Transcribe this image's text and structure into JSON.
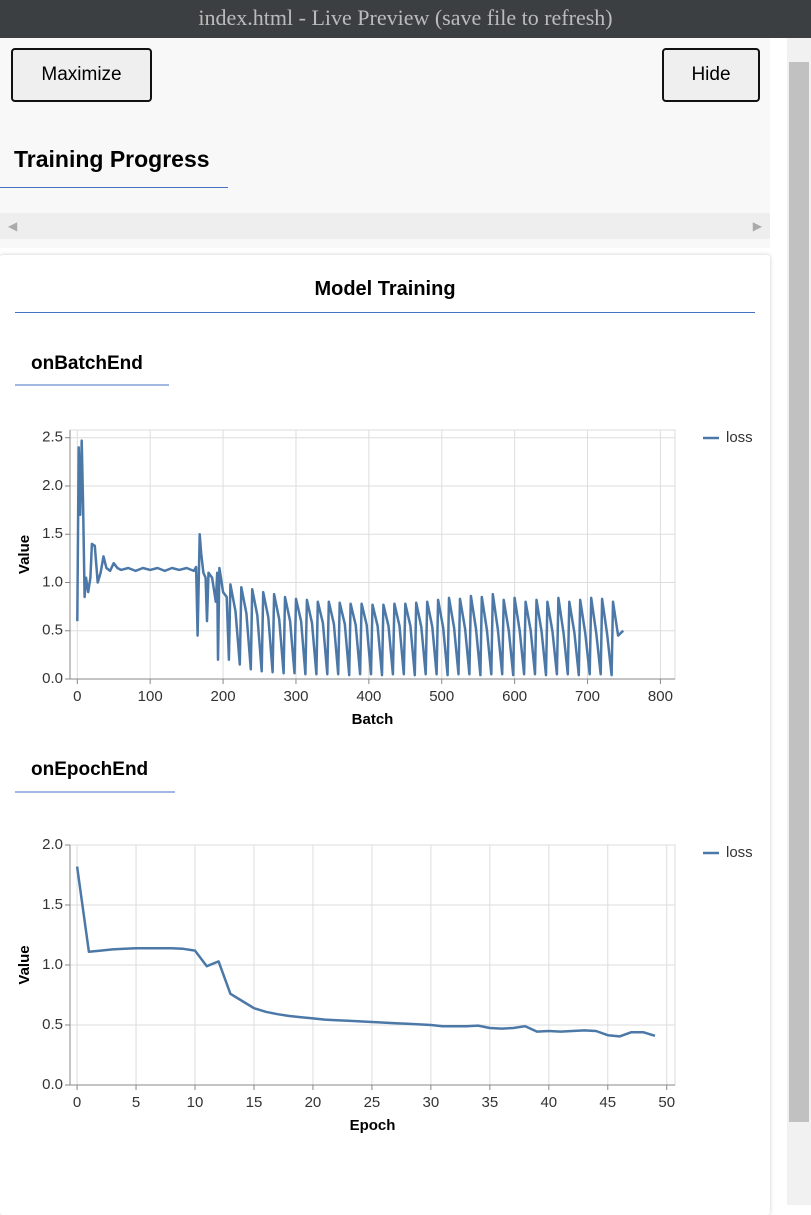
{
  "titlebar": "index.html - Live Preview (save file to refresh)",
  "buttons": [
    "Maximize",
    "Hide"
  ],
  "visor_title": "Training Progress",
  "surface_title": "Model Training",
  "chart_data": [
    {
      "type": "line",
      "title": "onBatchEnd",
      "x_label": "Batch",
      "y_label": "Value",
      "x": [
        0,
        2,
        4,
        6,
        8,
        10,
        12,
        15,
        18,
        20,
        24,
        28,
        32,
        36,
        40,
        45,
        50,
        55,
        60,
        70,
        80,
        90,
        100,
        110,
        120,
        130,
        140,
        150,
        160,
        163,
        165,
        168,
        170,
        173,
        176,
        178,
        180,
        185,
        190,
        192,
        193,
        195,
        200,
        205,
        208,
        210,
        217,
        223,
        225,
        232,
        238,
        240,
        247,
        253,
        255,
        262,
        268,
        270,
        277,
        283,
        285,
        292,
        298,
        300,
        307,
        313,
        315,
        322,
        328,
        330,
        337,
        343,
        345,
        352,
        358,
        360,
        367,
        373,
        375,
        382,
        388,
        390,
        397,
        403,
        405,
        412,
        418,
        420,
        427,
        433,
        435,
        442,
        448,
        450,
        457,
        463,
        465,
        472,
        478,
        480,
        487,
        493,
        495,
        502,
        508,
        510,
        517,
        523,
        525,
        532,
        538,
        540,
        547,
        553,
        555,
        562,
        568,
        570,
        577,
        583,
        585,
        592,
        598,
        600,
        607,
        613,
        615,
        622,
        628,
        630,
        637,
        643,
        645,
        652,
        658,
        660,
        667,
        673,
        675,
        682,
        688,
        690,
        697,
        703,
        705,
        712,
        718,
        720,
        727,
        733,
        735,
        742,
        749
      ],
      "series": [
        {
          "name": "loss",
          "color": "#4c78a8",
          "values": [
            0.6,
            2.4,
            1.7,
            2.47,
            1.8,
            0.85,
            1.05,
            0.9,
            1.05,
            1.4,
            1.38,
            1.0,
            1.1,
            1.27,
            1.15,
            1.12,
            1.2,
            1.15,
            1.13,
            1.15,
            1.12,
            1.15,
            1.13,
            1.15,
            1.12,
            1.15,
            1.13,
            1.15,
            1.12,
            1.16,
            0.45,
            1.5,
            1.3,
            1.1,
            1.05,
            0.6,
            1.1,
            1.05,
            0.8,
            1.1,
            0.2,
            1.15,
            0.9,
            0.85,
            0.2,
            0.98,
            0.7,
            0.15,
            0.95,
            0.68,
            0.1,
            0.93,
            0.66,
            0.08,
            0.9,
            0.64,
            0.07,
            0.88,
            0.62,
            0.06,
            0.85,
            0.6,
            0.06,
            0.83,
            0.6,
            0.05,
            0.82,
            0.58,
            0.05,
            0.8,
            0.58,
            0.05,
            0.8,
            0.57,
            0.05,
            0.79,
            0.57,
            0.04,
            0.78,
            0.56,
            0.05,
            0.78,
            0.56,
            0.05,
            0.77,
            0.55,
            0.04,
            0.77,
            0.55,
            0.05,
            0.78,
            0.55,
            0.05,
            0.78,
            0.55,
            0.04,
            0.79,
            0.54,
            0.05,
            0.8,
            0.54,
            0.05,
            0.82,
            0.53,
            0.04,
            0.84,
            0.53,
            0.05,
            0.83,
            0.52,
            0.05,
            0.86,
            0.52,
            0.04,
            0.85,
            0.51,
            0.05,
            0.88,
            0.51,
            0.05,
            0.82,
            0.5,
            0.04,
            0.84,
            0.5,
            0.05,
            0.8,
            0.5,
            0.05,
            0.82,
            0.49,
            0.04,
            0.8,
            0.49,
            0.05,
            0.84,
            0.48,
            0.05,
            0.8,
            0.48,
            0.04,
            0.82,
            0.47,
            0.05,
            0.84,
            0.47,
            0.05,
            0.83,
            0.46,
            0.04,
            0.8,
            0.45,
            0.5
          ]
        }
      ],
      "xlim": [
        -10,
        820
      ],
      "ylim": [
        0,
        2.58
      ],
      "xticks": [
        0,
        100,
        200,
        300,
        400,
        500,
        600,
        700,
        800
      ],
      "yticks": [
        {
          "value": 0,
          "label": "0.0"
        },
        {
          "value": 0.5,
          "label": "0.5"
        },
        {
          "value": 1,
          "label": "1.0"
        },
        {
          "value": 1.5,
          "label": "1.5"
        },
        {
          "value": 2,
          "label": "2.0"
        },
        {
          "value": 2.5,
          "label": "2.5"
        }
      ],
      "grid": true,
      "legend": "right"
    },
    {
      "type": "line",
      "title": "onEpochEnd",
      "x_label": "Epoch",
      "y_label": "Value",
      "x": [
        0,
        1,
        2,
        3,
        4,
        5,
        6,
        7,
        8,
        9,
        10,
        11,
        12,
        13,
        14,
        15,
        16,
        17,
        18,
        19,
        20,
        21,
        22,
        23,
        24,
        25,
        26,
        27,
        28,
        29,
        30,
        31,
        32,
        33,
        34,
        35,
        36,
        37,
        38,
        39,
        40,
        41,
        42,
        43,
        44,
        45,
        46,
        47,
        48,
        49
      ],
      "series": [
        {
          "name": "loss",
          "color": "#4c78a8",
          "values": [
            1.82,
            1.11,
            1.12,
            1.13,
            1.135,
            1.14,
            1.14,
            1.14,
            1.14,
            1.135,
            1.12,
            0.99,
            1.03,
            0.76,
            0.7,
            0.64,
            0.61,
            0.59,
            0.575,
            0.565,
            0.555,
            0.545,
            0.54,
            0.535,
            0.53,
            0.525,
            0.52,
            0.515,
            0.51,
            0.505,
            0.5,
            0.49,
            0.49,
            0.49,
            0.495,
            0.475,
            0.47,
            0.475,
            0.49,
            0.445,
            0.45,
            0.445,
            0.45,
            0.455,
            0.45,
            0.415,
            0.405,
            0.44,
            0.44,
            0.41
          ]
        }
      ],
      "xlim": [
        -0.6,
        50.7
      ],
      "ylim": [
        0,
        2
      ],
      "xticks": [
        0,
        5,
        10,
        15,
        20,
        25,
        30,
        35,
        40,
        45,
        50
      ],
      "yticks": [
        {
          "value": 0,
          "label": "0.0"
        },
        {
          "value": 0.5,
          "label": "0.5"
        },
        {
          "value": 1,
          "label": "1.0"
        },
        {
          "value": 1.5,
          "label": "1.5"
        },
        {
          "value": 2,
          "label": "2.0"
        }
      ],
      "grid": true,
      "legend": "right"
    }
  ]
}
